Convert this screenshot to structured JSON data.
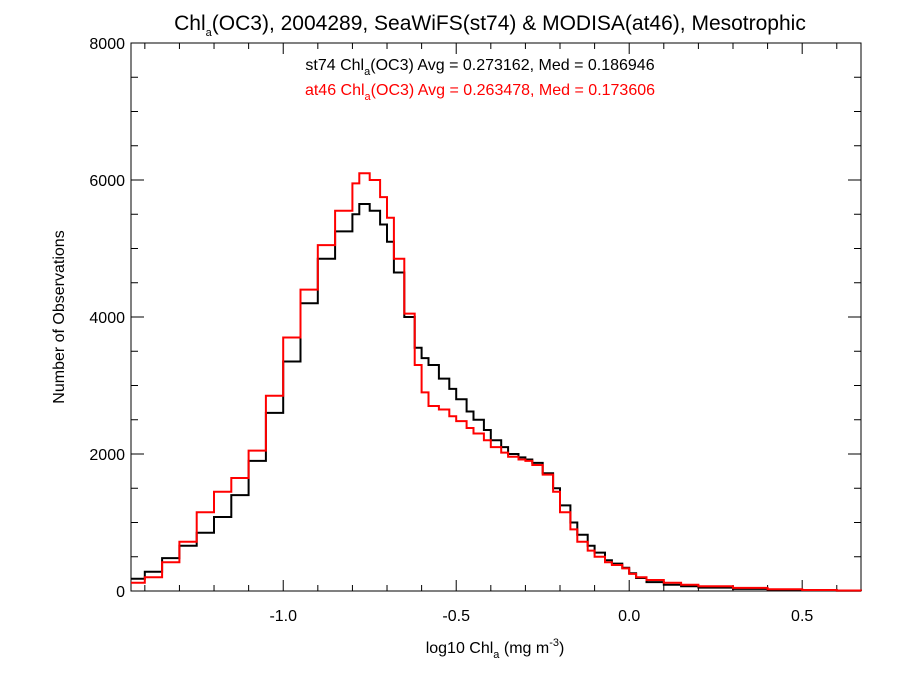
{
  "chart_data": {
    "type": "line",
    "title": {
      "pre": "Chl",
      "sub": "a",
      "post": "(OC3), 2004289, SeaWiFS(st74) & MODISA(at46), Mesotrophic"
    },
    "annotations": [
      {
        "pre": "st74 Chl",
        "sub": "a",
        "post": "(OC3) Avg = 0.273162, Med = 0.186946",
        "color": "#000000"
      },
      {
        "pre": "at46 Chl",
        "sub": "a",
        "post": "(OC3) Avg = 0.263478, Med = 0.173606",
        "color": "#ff0000"
      }
    ],
    "xlabel": {
      "pre": "log10 Chl",
      "sub": "a",
      "mid": " (mg m",
      "sup": "-3",
      "post": ")"
    },
    "ylabel": "Number of Observations",
    "xlim": [
      -1.44,
      0.67
    ],
    "ylim": [
      0,
      8000
    ],
    "xticks": [
      -1.0,
      -0.5,
      0.0,
      0.5
    ],
    "xtick_labels": [
      "-1.0",
      "-0.5",
      "0.0",
      "0.5"
    ],
    "yticks": [
      0,
      2000,
      4000,
      6000,
      8000
    ],
    "ytick_labels": [
      "0",
      "2000",
      "4000",
      "6000",
      "8000"
    ],
    "grid": false,
    "step": true,
    "series": [
      {
        "id": "st74",
        "color": "#000000",
        "x": [
          -1.44,
          -1.4,
          -1.35,
          -1.3,
          -1.25,
          -1.2,
          -1.15,
          -1.1,
          -1.05,
          -1.0,
          -0.95,
          -0.9,
          -0.85,
          -0.8,
          -0.78,
          -0.75,
          -0.72,
          -0.7,
          -0.68,
          -0.65,
          -0.62,
          -0.6,
          -0.58,
          -0.55,
          -0.52,
          -0.5,
          -0.47,
          -0.45,
          -0.42,
          -0.4,
          -0.37,
          -0.35,
          -0.32,
          -0.3,
          -0.28,
          -0.25,
          -0.22,
          -0.2,
          -0.17,
          -0.15,
          -0.12,
          -0.1,
          -0.07,
          -0.05,
          -0.02,
          0.0,
          0.02,
          0.05,
          0.1,
          0.15,
          0.2,
          0.3,
          0.4,
          0.5,
          0.6,
          0.67
        ],
        "y": [
          180,
          280,
          480,
          660,
          850,
          1080,
          1400,
          1900,
          2600,
          3350,
          4200,
          4850,
          5250,
          5500,
          5650,
          5550,
          5350,
          5100,
          4650,
          4000,
          3550,
          3400,
          3300,
          3100,
          2950,
          2800,
          2620,
          2500,
          2350,
          2200,
          2100,
          2000,
          1950,
          1920,
          1870,
          1720,
          1500,
          1250,
          1000,
          820,
          660,
          560,
          450,
          400,
          340,
          260,
          190,
          130,
          90,
          70,
          50,
          30,
          15,
          10,
          5,
          3
        ]
      },
      {
        "id": "at46",
        "color": "#ff0000",
        "x": [
          -1.44,
          -1.4,
          -1.35,
          -1.3,
          -1.25,
          -1.2,
          -1.15,
          -1.1,
          -1.05,
          -1.0,
          -0.95,
          -0.9,
          -0.85,
          -0.8,
          -0.78,
          -0.75,
          -0.72,
          -0.7,
          -0.68,
          -0.65,
          -0.62,
          -0.6,
          -0.58,
          -0.55,
          -0.52,
          -0.5,
          -0.47,
          -0.45,
          -0.42,
          -0.4,
          -0.37,
          -0.35,
          -0.32,
          -0.3,
          -0.28,
          -0.25,
          -0.22,
          -0.2,
          -0.17,
          -0.15,
          -0.12,
          -0.1,
          -0.07,
          -0.05,
          -0.02,
          0.0,
          0.02,
          0.05,
          0.1,
          0.15,
          0.2,
          0.3,
          0.4,
          0.5,
          0.6,
          0.67
        ],
        "y": [
          120,
          200,
          420,
          720,
          1150,
          1450,
          1650,
          2050,
          2850,
          3700,
          4400,
          5050,
          5550,
          5950,
          6100,
          6000,
          5750,
          5450,
          4850,
          4050,
          3300,
          2900,
          2700,
          2650,
          2550,
          2480,
          2380,
          2300,
          2200,
          2100,
          2020,
          1960,
          1920,
          1900,
          1840,
          1700,
          1450,
          1150,
          900,
          720,
          590,
          500,
          420,
          380,
          330,
          250,
          200,
          160,
          120,
          90,
          70,
          45,
          25,
          15,
          8,
          5
        ]
      }
    ]
  }
}
